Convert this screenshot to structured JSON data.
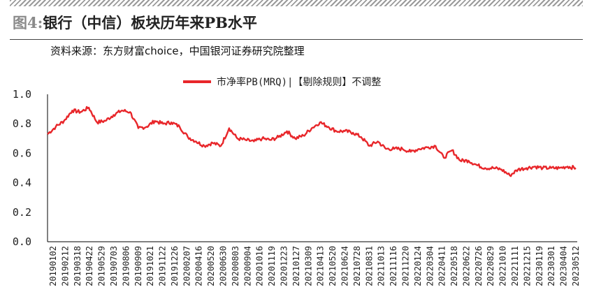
{
  "header": {
    "figure_no": "图4:",
    "title": "银行（中信）板块历年来PB水平",
    "source": "资料来源：东方财富choice，中国银河证券研究院整理"
  },
  "chart_data": {
    "type": "line",
    "legend": {
      "label": "市净率PB(MRQ)|【剔除规则】不调整",
      "position": "top-center"
    },
    "ylim": [
      0,
      1.0
    ],
    "yticks": [
      "0.0",
      "0.2",
      "0.4",
      "0.6",
      "0.8",
      "1.0"
    ],
    "grid": false,
    "x_tick_labels": [
      "20190102",
      "20190212",
      "20190318",
      "20190422",
      "20190529",
      "20190703",
      "20190806",
      "20190909",
      "20191021",
      "20191122",
      "20191226",
      "20200207",
      "20200416",
      "20200520",
      "20200630",
      "20200803",
      "20200904",
      "20201016",
      "20201119",
      "20201223",
      "20210127",
      "20210309",
      "20210413",
      "20210520",
      "20210624",
      "20210728",
      "20210831",
      "20211013",
      "20211116",
      "20211220",
      "20220124",
      "20220304",
      "20220411",
      "20220518",
      "20220622",
      "20220726",
      "20220829",
      "20221010",
      "20221111",
      "20221215",
      "20230119",
      "20230301",
      "20230404",
      "20230512"
    ],
    "series": [
      {
        "name": "市净率PB(MRQ)|【剔除规则】不调整",
        "color": "#e8262a",
        "values": [
          0.73,
          0.78,
          0.82,
          0.89,
          0.88,
          0.91,
          0.81,
          0.82,
          0.86,
          0.89,
          0.88,
          0.77,
          0.78,
          0.82,
          0.8,
          0.81,
          0.78,
          0.71,
          0.68,
          0.65,
          0.67,
          0.65,
          0.77,
          0.7,
          0.69,
          0.68,
          0.7,
          0.69,
          0.71,
          0.75,
          0.7,
          0.72,
          0.77,
          0.81,
          0.78,
          0.75,
          0.75,
          0.74,
          0.71,
          0.65,
          0.68,
          0.63,
          0.63,
          0.63,
          0.61,
          0.63,
          0.64,
          0.65,
          0.57,
          0.62,
          0.55,
          0.55,
          0.52,
          0.5,
          0.5,
          0.49,
          0.45,
          0.49,
          0.5,
          0.51,
          0.5,
          0.5,
          0.5,
          0.51,
          0.5
        ]
      }
    ]
  }
}
